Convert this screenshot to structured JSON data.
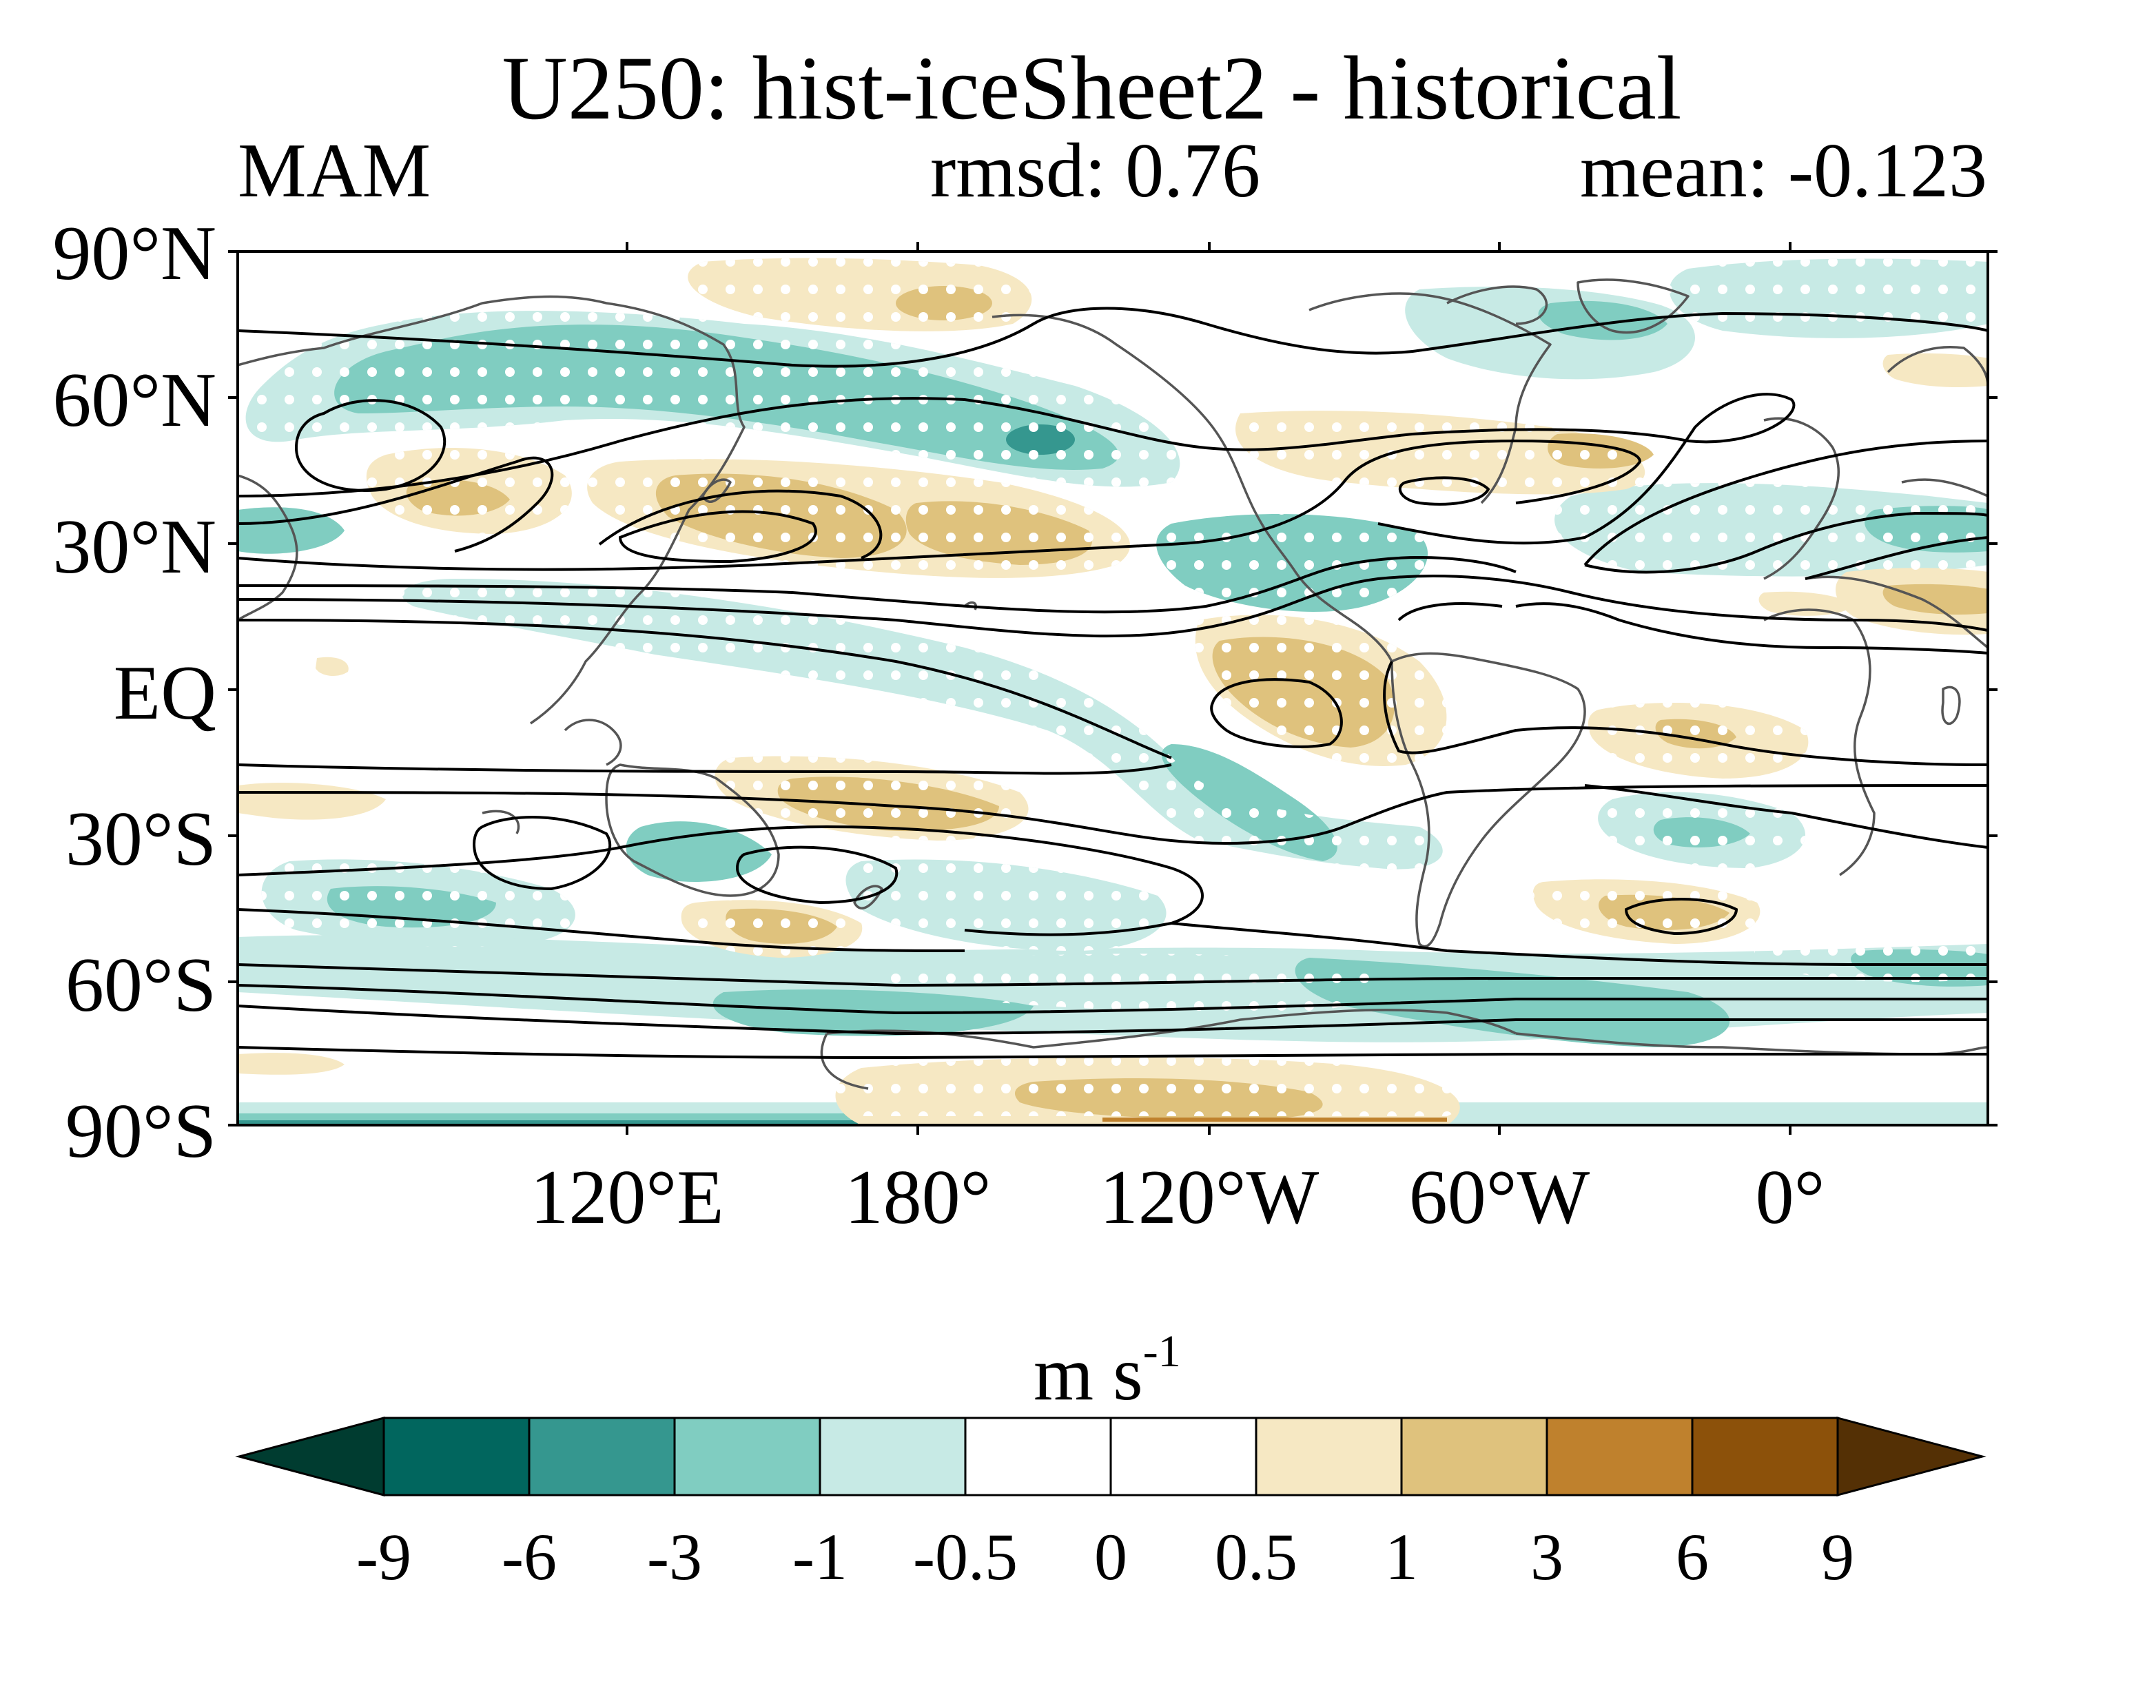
{
  "title": "U250: hist-iceSheet2 - historical",
  "season": "MAM",
  "rmsd_label": "rmsd: 0.76",
  "mean_label": "mean: -0.123",
  "map": {
    "projection": "cylindrical-equidistant",
    "central_longitude": 30,
    "lat_range": [
      -90,
      90
    ],
    "lat_ticks": [
      "90°N",
      "60°N",
      "30°N",
      "EQ",
      "30°S",
      "60°S",
      "90°S"
    ],
    "lon_ticks": [
      "120°E",
      "180°",
      "120°W",
      "60°W",
      "0°"
    ],
    "stippling": "white dots indicate significance",
    "contours": "black lines show historical climatology"
  },
  "colorbar": {
    "unit": "m s",
    "unit_exponent": "-1",
    "levels": [
      "-9",
      "-6",
      "-3",
      "-1",
      "-0.5",
      "0",
      "0.5",
      "1",
      "3",
      "6",
      "9"
    ],
    "colors": [
      "#003c30",
      "#01665e",
      "#35978f",
      "#80cdc1",
      "#c7eae5",
      "#ffffff",
      "#ffffff",
      "#f6e8c3",
      "#dfc27d",
      "#bf812d",
      "#8c510a",
      "#543005"
    ]
  }
}
